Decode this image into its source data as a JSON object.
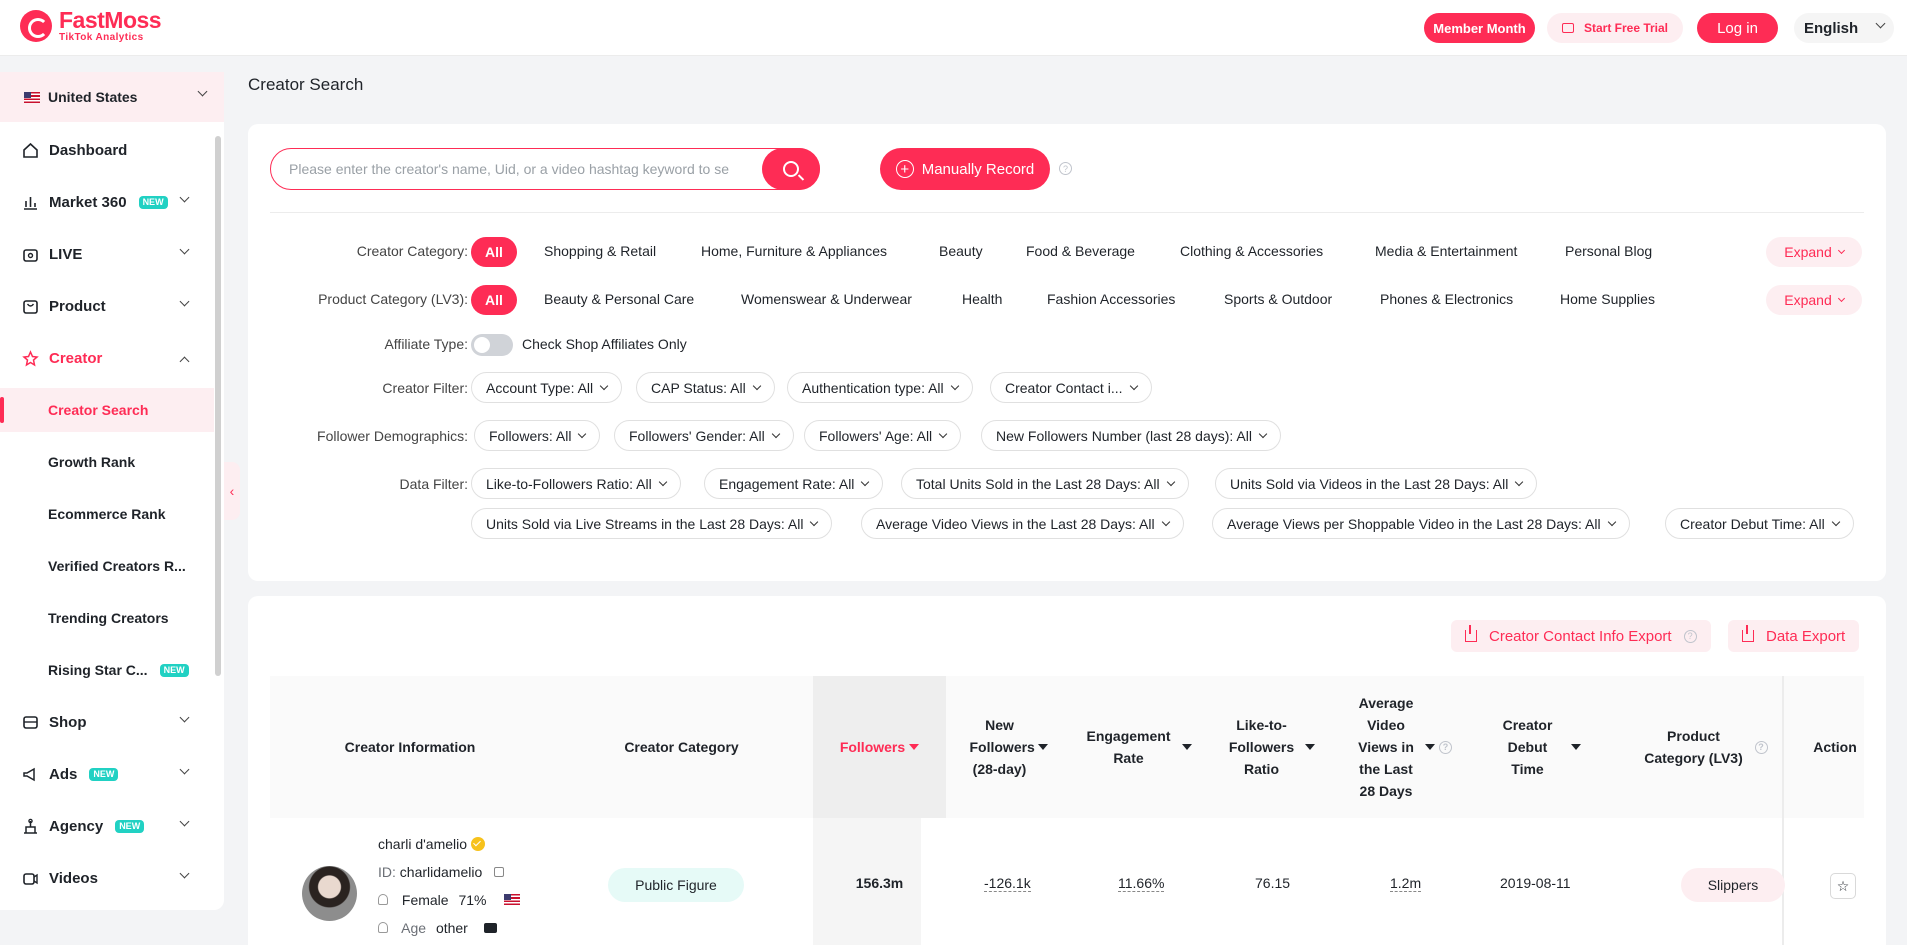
{
  "brand": {
    "name": "FastMoss",
    "tagline": "TikTok Analytics",
    "accent": "#fe2c55"
  },
  "header": {
    "member_label": "Member Month",
    "trial_label": "Start Free Trial",
    "login_label": "Log in",
    "language": "English"
  },
  "sidebar": {
    "country": "United States",
    "items": [
      {
        "label": "Dashboard",
        "icon": "home-icon"
      },
      {
        "label": "Market 360",
        "icon": "bar-chart-icon",
        "badge": "NEW"
      },
      {
        "label": "LIVE",
        "icon": "live-tv-icon"
      },
      {
        "label": "Product",
        "icon": "bag-icon"
      },
      {
        "label": "Creator",
        "icon": "user-star-icon"
      },
      {
        "label": "Shop",
        "icon": "shop-icon"
      },
      {
        "label": "Ads",
        "icon": "megaphone-icon",
        "badge": "NEW"
      },
      {
        "label": "Agency",
        "icon": "agency-icon",
        "badge": "NEW"
      },
      {
        "label": "Videos",
        "icon": "video-icon"
      }
    ],
    "creator_sub": [
      {
        "label": "Creator Search"
      },
      {
        "label": "Growth Rank"
      },
      {
        "label": "Ecommerce Rank"
      },
      {
        "label": "Verified Creators R..."
      },
      {
        "label": "Trending Creators"
      },
      {
        "label": "Rising Star C...",
        "badge": "NEW"
      }
    ]
  },
  "main": {
    "page_title": "Creator Search",
    "search": {
      "placeholder": "Please enter the creator's name, Uid, or a video hashtag keyword to search",
      "value": "",
      "record_label": "Manually Record"
    },
    "filters": {
      "creator_category_label": "Creator Category:",
      "creator_categories": [
        "All",
        "Shopping & Retail",
        "Home, Furniture & Appliances",
        "Beauty",
        "Food & Beverage",
        "Clothing & Accessories",
        "Media & Entertainment",
        "Personal Blog"
      ],
      "product_category_label": "Product Category (LV3):",
      "product_categories": [
        "All",
        "Beauty & Personal Care",
        "Womenswear & Underwear",
        "Health",
        "Fashion Accessories",
        "Sports & Outdoor",
        "Phones & Electronics",
        "Home Supplies"
      ],
      "expand_label": "Expand",
      "affiliate_label": "Affiliate Type:",
      "affiliate_toggle_text": "Check Shop Affiliates Only",
      "creator_filter_label": "Creator Filter:",
      "creator_filters": [
        "Account Type: All",
        "CAP Status: All",
        "Authentication type: All",
        "Creator Contact i..."
      ],
      "demographics_label": "Follower Demographics:",
      "demographics": [
        "Followers: All",
        "Followers' Gender: All",
        "Followers' Age: All",
        "New Followers Number (last 28 days): All"
      ],
      "data_filter_label": "Data Filter:",
      "data_filters_row1": [
        "Like-to-Followers Ratio: All",
        "Engagement Rate: All",
        "Total Units Sold in the Last 28 Days: All",
        "Units Sold via Videos in the Last 28 Days: All"
      ],
      "data_filters_row2": [
        "Units Sold via Live Streams in the Last 28 Days: All",
        "Average Video Views in the Last 28 Days: All",
        "Average Views per Shoppable Video in the Last 28 Days: All",
        "Creator Debut Time: All"
      ]
    },
    "results": {
      "contact_export_label": "Creator Contact Info Export",
      "data_export_label": "Data Export",
      "columns": {
        "info": "Creator Information",
        "category": "Creator Category",
        "followers": "Followers",
        "new_followers": "New Followers (28-day)",
        "engagement": "Engagement Rate",
        "like_ratio": "Like-to-Followers Ratio",
        "avg_views": "Average Video Views in the Last 28 Days",
        "debut": "Creator Debut Time",
        "product_cat": "Product Category (LV3)",
        "action": "Action"
      },
      "rows": [
        {
          "name": "charli d'amelio",
          "id_label": "ID:",
          "id": "charlidamelio",
          "gender": "Female",
          "gender_pct": "71%",
          "age_label": "Age",
          "age": "other",
          "category": "Public Figure",
          "followers": "156.3m",
          "new_followers": "-126.1k",
          "engagement": "11.66%",
          "like_ratio": "76.15",
          "avg_views": "1.2m",
          "debut": "2019-08-11",
          "product_cat": "Slippers"
        }
      ]
    }
  }
}
